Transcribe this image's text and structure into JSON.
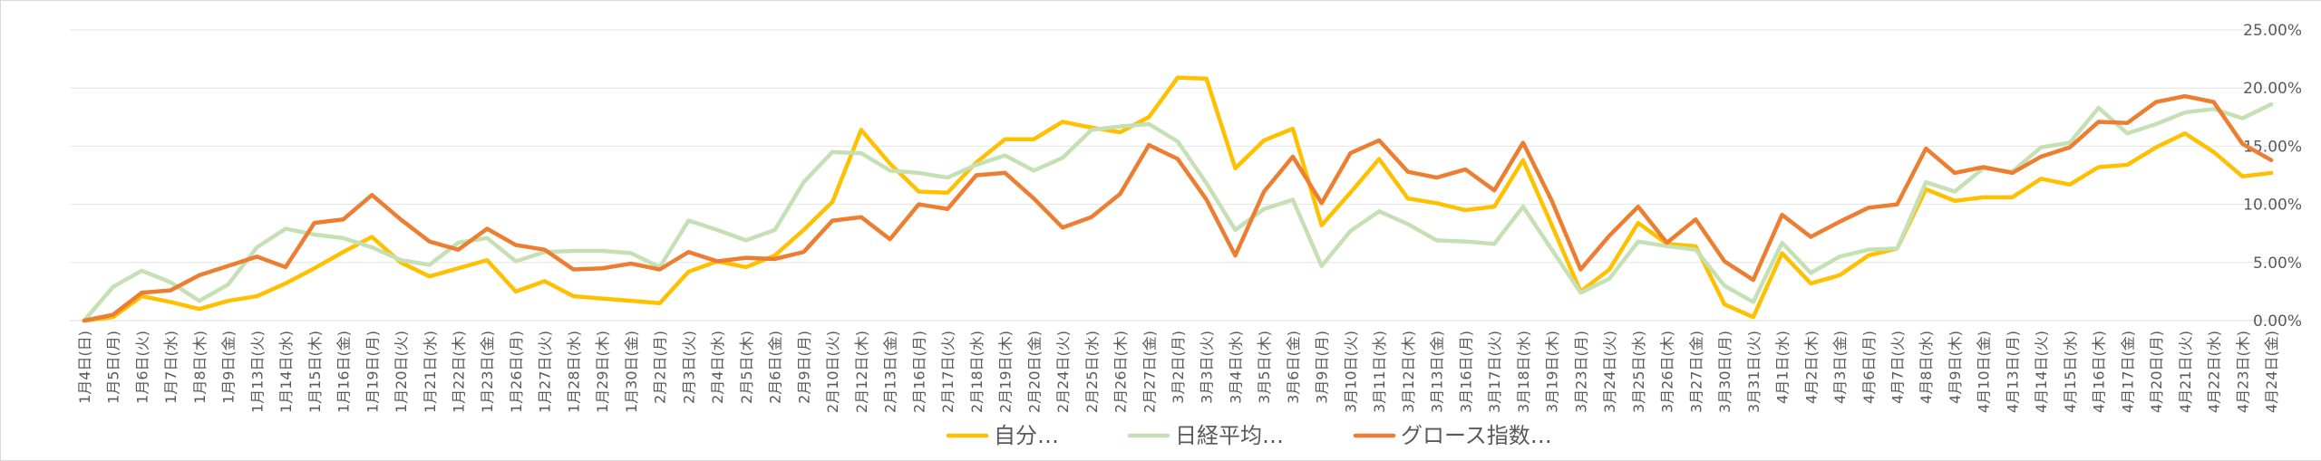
{
  "chart_data": {
    "type": "line",
    "title": "",
    "xlabel": "",
    "ylabel": "",
    "ylim": [
      0,
      25
    ],
    "y_ticks": [
      "0.00%",
      "5.00%",
      "10.00%",
      "15.00%",
      "20.00%",
      "25.00%"
    ],
    "grid": true,
    "legend_position": "bottom",
    "categories": [
      "1月4日(日)",
      "1月5日(月)",
      "1月6日(火)",
      "1月7日(水)",
      "1月8日(木)",
      "1月9日(金)",
      "1月13日(火)",
      "1月14日(水)",
      "1月15日(木)",
      "1月16日(金)",
      "1月19日(月)",
      "1月20日(火)",
      "1月21日(水)",
      "1月22日(木)",
      "1月23日(金)",
      "1月26日(月)",
      "1月27日(火)",
      "1月28日(水)",
      "1月29日(木)",
      "1月30日(金)",
      "2月2日(月)",
      "2月3日(火)",
      "2月4日(水)",
      "2月5日(木)",
      "2月6日(金)",
      "2月9日(月)",
      "2月10日(火)",
      "2月12日(木)",
      "2月13日(金)",
      "2月16日(月)",
      "2月17日(火)",
      "2月18日(水)",
      "2月19日(木)",
      "2月20日(金)",
      "2月24日(火)",
      "2月25日(水)",
      "2月26日(木)",
      "2月27日(金)",
      "3月2日(月)",
      "3月3日(火)",
      "3月4日(水)",
      "3月5日(木)",
      "3月6日(金)",
      "3月9日(月)",
      "3月10日(火)",
      "3月11日(水)",
      "3月12日(木)",
      "3月13日(金)",
      "3月16日(月)",
      "3月17日(火)",
      "3月18日(水)",
      "3月19日(木)",
      "3月23日(月)",
      "3月24日(火)",
      "3月25日(水)",
      "3月26日(木)",
      "3月27日(金)",
      "3月30日(月)",
      "3月31日(火)",
      "4月1日(水)",
      "4月2日(木)",
      "4月3日(金)",
      "4月6日(月)",
      "4月7日(火)",
      "4月8日(水)",
      "4月9日(木)",
      "4月10日(金)",
      "4月13日(月)",
      "4月14日(火)",
      "4月15日(水)",
      "4月16日(木)",
      "4月17日(金)",
      "4月20日(月)",
      "4月21日(火)",
      "4月22日(水)",
      "4月23日(木)",
      "4月24日(金)"
    ],
    "series": [
      {
        "name": "自分…",
        "color": "#ffc000",
        "values": [
          0,
          0.3,
          2.1,
          1.6,
          1.0,
          1.7,
          2.1,
          3.2,
          4.5,
          5.9,
          7.2,
          5.0,
          3.8,
          4.5,
          5.2,
          2.5,
          3.4,
          2.1,
          1.9,
          1.7,
          1.5,
          4.2,
          5.1,
          4.6,
          5.6,
          7.8,
          10.2,
          16.4,
          13.5,
          11.1,
          11.0,
          13.6,
          15.6,
          15.6,
          17.1,
          16.6,
          16.2,
          17.5,
          20.9,
          20.8,
          13.1,
          15.5,
          16.5,
          8.2,
          11.0,
          13.9,
          10.5,
          10.1,
          9.5,
          9.8,
          13.8,
          8.2,
          2.5,
          4.4,
          8.4,
          6.6,
          6.4,
          1.4,
          0.3,
          5.8,
          3.2,
          3.9,
          5.6,
          6.2,
          11.3,
          10.3,
          10.6,
          10.6,
          12.2,
          11.7,
          13.2,
          13.4,
          14.9,
          16.1,
          14.5,
          12.4,
          12.7
        ]
      },
      {
        "name": "日経平均…",
        "color": "#c5e0b4",
        "values": [
          0,
          2.9,
          4.3,
          3.3,
          1.7,
          3.1,
          6.3,
          7.9,
          7.4,
          7.1,
          6.3,
          5.2,
          4.8,
          6.7,
          7.1,
          5.1,
          5.9,
          6.0,
          6.0,
          5.8,
          4.6,
          8.6,
          7.8,
          6.9,
          7.8,
          11.9,
          14.5,
          14.4,
          12.9,
          12.7,
          12.3,
          13.4,
          14.2,
          12.9,
          14.0,
          16.4,
          16.7,
          16.9,
          15.4,
          11.8,
          7.8,
          9.6,
          10.4,
          4.7,
          7.7,
          9.4,
          8.3,
          6.9,
          6.8,
          6.6,
          9.8,
          6.1,
          2.4,
          3.6,
          6.8,
          6.4,
          6.1,
          3.0,
          1.6,
          6.7,
          4.1,
          5.5,
          6.1,
          6.2,
          11.9,
          11.1,
          13.1,
          12.8,
          14.9,
          15.3,
          18.3,
          16.1,
          16.9,
          17.9,
          18.2,
          17.4,
          18.6
        ]
      },
      {
        "name": "グロース指数…",
        "color": "#ed7d31",
        "values": [
          0,
          0.5,
          2.4,
          2.6,
          3.9,
          4.7,
          5.5,
          4.6,
          8.4,
          8.7,
          10.8,
          8.7,
          6.8,
          6.1,
          7.9,
          6.5,
          6.1,
          4.4,
          4.5,
          4.9,
          4.4,
          5.9,
          5.1,
          5.4,
          5.3,
          5.9,
          8.6,
          8.9,
          7.0,
          10.0,
          9.6,
          12.5,
          12.7,
          10.5,
          8.0,
          8.9,
          10.9,
          15.1,
          13.9,
          10.4,
          5.6,
          11.1,
          14.1,
          10.1,
          14.4,
          15.5,
          12.8,
          12.3,
          13.0,
          11.2,
          15.3,
          10.3,
          4.4,
          7.3,
          9.8,
          6.7,
          8.7,
          5.1,
          3.5,
          9.1,
          7.2,
          8.5,
          9.7,
          10.0,
          14.8,
          12.7,
          13.2,
          12.7,
          14.1,
          14.9,
          17.1,
          17.0,
          18.8,
          19.3,
          18.8,
          15.2,
          13.8
        ]
      }
    ]
  }
}
